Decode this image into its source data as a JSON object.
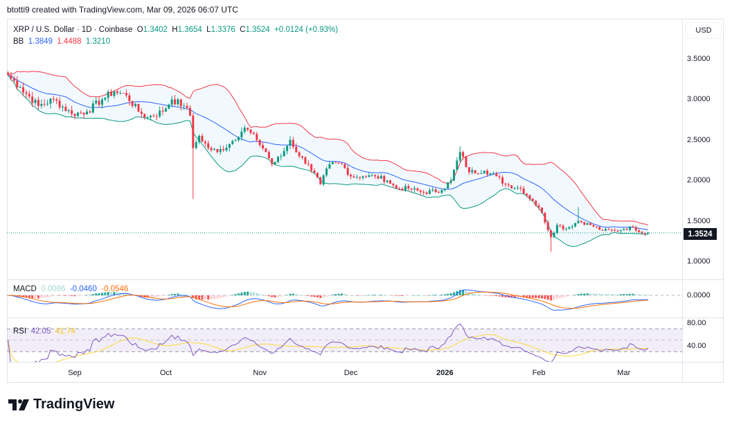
{
  "credit": "btotti9 created with TradingView.com, Mar 09, 2026 06:07 UTC",
  "symbol": {
    "title": "XRP / U.S. Dollar · 1D · Coinbase",
    "o_label": "O",
    "o": "1.3402",
    "h_label": "H",
    "h": "1.3654",
    "l_label": "L",
    "l": "1.3376",
    "c_label": "C",
    "c": "1.3524",
    "change": "+0.0124 (+0.93%)"
  },
  "bb": {
    "label": "BB",
    "basis": "1.3849",
    "upper": "1.4488",
    "lower": "1.3210"
  },
  "macd": {
    "label": "MACD",
    "hist": "0.0086",
    "macd": "-0.0460",
    "signal": "-0.0546"
  },
  "rsi": {
    "label": "RSI",
    "rsi": "42.05",
    "ma": "41.74"
  },
  "currency_button": "USD",
  "last_price": "1.3524",
  "logo_text": "TradingView",
  "colors": {
    "up": "#089981",
    "down": "#f23645",
    "bb_basis": "#2962ff",
    "bb_upper": "#f23645",
    "bb_lower": "#089981",
    "macd": "#2962ff",
    "signal": "#ff6d00",
    "rsi": "#7e57c2",
    "rsi_ma": "#fdd835"
  },
  "chart_data": {
    "type": "candlestick",
    "title": "XRP / U.S. Dollar · 1D · Coinbase",
    "interval": "1D",
    "ylim": [
      0.75,
      3.75
    ],
    "y_ticks": [
      "3.5000",
      "3.0000",
      "2.5000",
      "2.0000",
      "1.5000",
      "1.0000"
    ],
    "macd_ticks": [
      "0.0000"
    ],
    "rsi_ticks": [
      "80.00",
      "40.00"
    ],
    "x_ticks": [
      {
        "date": "2025-09-01",
        "label": "Sep"
      },
      {
        "date": "2025-10-01",
        "label": "Oct"
      },
      {
        "date": "2025-11-01",
        "label": "Nov"
      },
      {
        "date": "2025-12-01",
        "label": "Dec"
      },
      {
        "date": "2026-01-01",
        "label": "2026",
        "bold": true
      },
      {
        "date": "2026-02-01",
        "label": "Feb"
      },
      {
        "date": "2026-03-01",
        "label": "Mar"
      }
    ],
    "approx_close_anchors": [
      [
        "2025-08-10",
        3.3
      ],
      [
        "2025-08-14",
        3.15
      ],
      [
        "2025-08-20",
        2.92
      ],
      [
        "2025-08-25",
        3.0
      ],
      [
        "2025-08-31",
        2.82
      ],
      [
        "2025-09-05",
        2.85
      ],
      [
        "2025-09-10",
        3.0
      ],
      [
        "2025-09-14",
        3.1
      ],
      [
        "2025-09-18",
        3.05
      ],
      [
        "2025-09-22",
        2.85
      ],
      [
        "2025-09-25",
        2.78
      ],
      [
        "2025-09-30",
        2.85
      ],
      [
        "2025-10-03",
        3.0
      ],
      [
        "2025-10-07",
        2.92
      ],
      [
        "2025-10-09",
        2.8
      ],
      [
        "2025-10-10",
        2.4
      ],
      [
        "2025-10-12",
        2.55
      ],
      [
        "2025-10-15",
        2.4
      ],
      [
        "2025-10-18",
        2.35
      ],
      [
        "2025-10-22",
        2.45
      ],
      [
        "2025-10-27",
        2.65
      ],
      [
        "2025-10-31",
        2.5
      ],
      [
        "2025-11-03",
        2.35
      ],
      [
        "2025-11-05",
        2.2
      ],
      [
        "2025-11-08",
        2.3
      ],
      [
        "2025-11-11",
        2.5
      ],
      [
        "2025-11-14",
        2.3
      ],
      [
        "2025-11-17",
        2.2
      ],
      [
        "2025-11-21",
        1.95
      ],
      [
        "2025-11-24",
        2.2
      ],
      [
        "2025-11-28",
        2.2
      ],
      [
        "2025-12-01",
        2.05
      ],
      [
        "2025-12-05",
        2.05
      ],
      [
        "2025-12-09",
        2.05
      ],
      [
        "2025-12-13",
        2.0
      ],
      [
        "2025-12-16",
        1.9
      ],
      [
        "2025-12-20",
        1.9
      ],
      [
        "2025-12-25",
        1.85
      ],
      [
        "2025-12-31",
        1.88
      ],
      [
        "2026-01-03",
        2.0
      ],
      [
        "2026-01-06",
        2.35
      ],
      [
        "2026-01-09",
        2.1
      ],
      [
        "2026-01-14",
        2.12
      ],
      [
        "2026-01-18",
        2.05
      ],
      [
        "2026-01-21",
        1.95
      ],
      [
        "2026-01-26",
        1.9
      ],
      [
        "2026-01-30",
        1.75
      ],
      [
        "2026-02-02",
        1.6
      ],
      [
        "2026-02-05",
        1.3
      ],
      [
        "2026-02-07",
        1.45
      ],
      [
        "2026-02-10",
        1.4
      ],
      [
        "2026-02-14",
        1.5
      ],
      [
        "2026-02-18",
        1.45
      ],
      [
        "2026-02-22",
        1.38
      ],
      [
        "2026-02-26",
        1.38
      ],
      [
        "2026-03-01",
        1.4
      ],
      [
        "2026-03-04",
        1.42
      ],
      [
        "2026-03-08",
        1.3402
      ],
      [
        "2026-03-09",
        1.3524
      ]
    ],
    "wick_extremes": [
      [
        "2025-10-10",
        1.77
      ],
      [
        "2026-02-05",
        1.12
      ],
      [
        "2026-02-14",
        1.67
      ],
      [
        "2026-01-06",
        2.42
      ]
    ],
    "indicators": [
      "Bollinger Bands (20, 2)",
      "MACD (12, 26, 9)",
      "RSI (14) with MA"
    ]
  }
}
